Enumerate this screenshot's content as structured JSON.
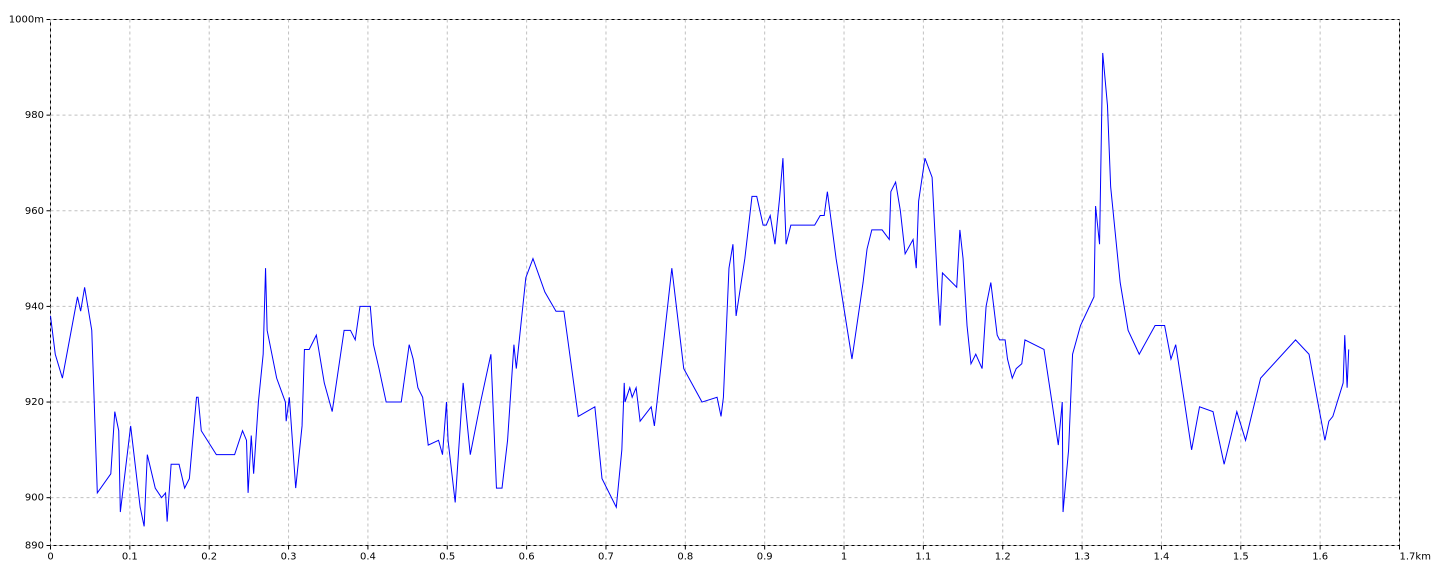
{
  "chart_data": {
    "type": "line",
    "x": [
      0,
      0.006,
      0.015,
      0.034,
      0.038,
      0.043,
      0.052,
      0.059,
      0.076,
      0.081,
      0.086,
      0.088,
      0.101,
      0.113,
      0.118,
      0.122,
      0.132,
      0.14,
      0.145,
      0.147,
      0.152,
      0.162,
      0.169,
      0.175,
      0.184,
      0.186,
      0.19,
      0.209,
      0.232,
      0.242,
      0.247,
      0.249,
      0.253,
      0.256,
      0.262,
      0.268,
      0.271,
      0.273,
      0.285,
      0.296,
      0.297,
      0.301,
      0.309,
      0.317,
      0.32,
      0.326,
      0.335,
      0.345,
      0.355,
      0.37,
      0.378,
      0.384,
      0.39,
      0.403,
      0.407,
      0.414,
      0.423,
      0.442,
      0.452,
      0.457,
      0.463,
      0.469,
      0.476,
      0.489,
      0.494,
      0.499,
      0.501,
      0.51,
      0.52,
      0.529,
      0.542,
      0.555,
      0.562,
      0.569,
      0.576,
      0.584,
      0.587,
      0.599,
      0.608,
      0.623,
      0.637,
      0.647,
      0.665,
      0.686,
      0.695,
      0.713,
      0.72,
      0.723,
      0.724,
      0.73,
      0.733,
      0.738,
      0.743,
      0.757,
      0.761,
      0.783,
      0.798,
      0.821,
      0.84,
      0.845,
      0.848,
      0.855,
      0.86,
      0.864,
      0.875,
      0.884,
      0.89,
      0.898,
      0.902,
      0.907,
      0.913,
      0.919,
      0.923,
      0.927,
      0.933,
      0.963,
      0.97,
      0.975,
      0.979,
      0.99,
      1.01,
      1.024,
      1.029,
      1.035,
      1.048,
      1.057,
      1.059,
      1.065,
      1.071,
      1.077,
      1.087,
      1.091,
      1.094,
      1.102,
      1.111,
      1.118,
      1.121,
      1.124,
      1.142,
      1.146,
      1.15,
      1.155,
      1.16,
      1.166,
      1.174,
      1.179,
      1.185,
      1.193,
      1.196,
      1.203,
      1.206,
      1.212,
      1.217,
      1.224,
      1.228,
      1.252,
      1.262,
      1.27,
      1.275,
      1.276,
      1.283,
      1.288,
      1.298,
      1.315,
      1.317,
      1.322,
      1.326,
      1.332,
      1.336,
      1.348,
      1.358,
      1.372,
      1.392,
      1.404,
      1.412,
      1.418,
      1.429,
      1.438,
      1.448,
      1.465,
      1.479,
      1.495,
      1.506,
      1.525,
      1.569,
      1.586,
      1.597,
      1.606,
      1.611,
      1.616,
      1.629,
      1.631,
      1.634,
      1.636
    ],
    "values": [
      938,
      930,
      925,
      942,
      939,
      944,
      935,
      901,
      905,
      918,
      914,
      897,
      915,
      898,
      894,
      909,
      902,
      900,
      901,
      895,
      907,
      907,
      902,
      904,
      921,
      921,
      914,
      909,
      909,
      914,
      912,
      901,
      913,
      905,
      920,
      930,
      948,
      935,
      925,
      920,
      916,
      921,
      902,
      915,
      931,
      931,
      934,
      924,
      918,
      935,
      935,
      933,
      940,
      940,
      932,
      927,
      920,
      920,
      932,
      929,
      923,
      921,
      911,
      912,
      909,
      920,
      912,
      899,
      924,
      909,
      920,
      930,
      902,
      902,
      912,
      932,
      927,
      946,
      950,
      943,
      939,
      939,
      917,
      919,
      904,
      898,
      910,
      924,
      920,
      923,
      921,
      923,
      916,
      919,
      915,
      948,
      927,
      920,
      921,
      917,
      921,
      948,
      953,
      938,
      950,
      963,
      963,
      957,
      957,
      959,
      953,
      963,
      971,
      953,
      957,
      957,
      959,
      959,
      964,
      950,
      929,
      945,
      952,
      956,
      956,
      954,
      964,
      966,
      960,
      951,
      954,
      948,
      962,
      971,
      967,
      944,
      936,
      947,
      944,
      956,
      950,
      936,
      928,
      930,
      927,
      940,
      945,
      934,
      933,
      933,
      929,
      925,
      927,
      928,
      933,
      931,
      920,
      911,
      920,
      897,
      910,
      930,
      936,
      942,
      961,
      953,
      993,
      982,
      965,
      945,
      935,
      930,
      936,
      936,
      929,
      932,
      920,
      910,
      919,
      918,
      907,
      918,
      912,
      925,
      933,
      930,
      920,
      912,
      916,
      917,
      924,
      934,
      923,
      931
    ],
    "color": "#0000ff",
    "xlim": [
      0,
      1.7
    ],
    "xticks": [
      0,
      0.1,
      0.2,
      0.3,
      0.4,
      0.5,
      0.6,
      0.7,
      0.8,
      0.9,
      1,
      1.1,
      1.2,
      1.3,
      1.4,
      1.5,
      1.6,
      {
        "value": 1.7,
        "label": "1.7km"
      }
    ],
    "ylim": [
      890,
      1000
    ],
    "yticks": [
      890,
      900,
      920,
      940,
      960,
      980,
      {
        "value": 1000,
        "label": "1000m"
      }
    ],
    "grid": true
  }
}
